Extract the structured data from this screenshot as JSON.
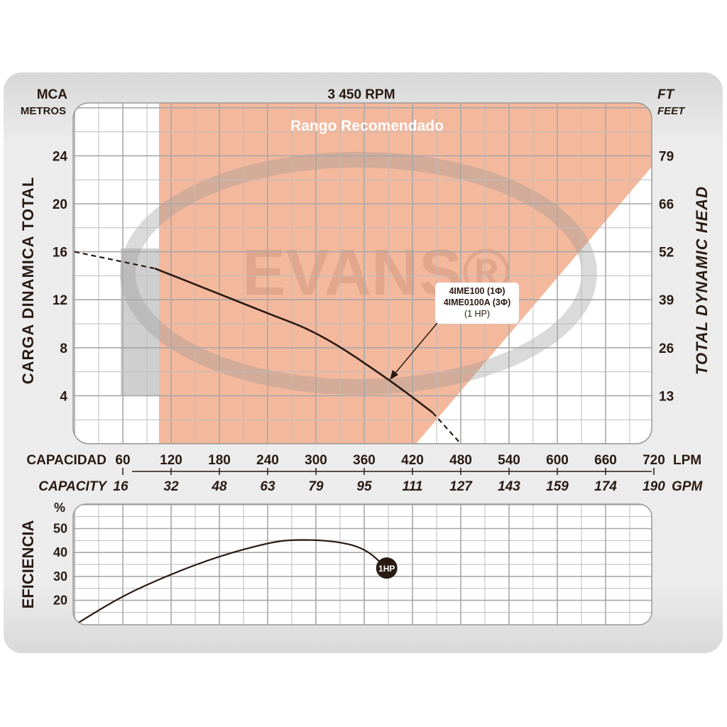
{
  "chart_data": [
    {
      "type": "line",
      "title": "3 450 RPM",
      "watermark": "EVANS®",
      "region_label": "Rango Recomendado",
      "ylabel_left": "CARGA DINAMICA TOTAL",
      "ylabel_right": "TOTAL DYNAMIC HEAD",
      "left_unit": "MCA",
      "left_unit_sub": "METROS",
      "right_unit": "FT",
      "right_unit_sub": "FEET",
      "xlabel_es": "CAPACIDAD",
      "xlabel_en": "CAPACITY",
      "x_unit": "LPM",
      "x_unit_alt": "GPM",
      "xlim": [
        0,
        720
      ],
      "ylim": [
        0,
        28.4
      ],
      "x_ticks": [
        60,
        120,
        180,
        240,
        300,
        360,
        420,
        480,
        540,
        600,
        660,
        720
      ],
      "x_ticks_gpm": [
        "16",
        "32",
        "48",
        "63",
        "79",
        "95",
        "111",
        "127",
        "143",
        "159",
        "174",
        "190"
      ],
      "y_ticks": [
        4,
        8,
        12,
        16,
        20,
        24
      ],
      "y_ticks_ft": [
        "13",
        "26",
        "39",
        "52",
        "66",
        "79"
      ],
      "recommended_range_lpm": [
        105,
        420
      ],
      "series": [
        {
          "name": "4IME100 (1Φ) / 4IME0100A (3Φ) (1 HP)",
          "label_lines": [
            "4IME100 (1Φ)",
            "4IME0100A (3Φ)",
            "(1 HP)"
          ],
          "x": [
            0,
            50,
            100,
            172,
            235,
            305,
            392,
            445,
            480
          ],
          "y": [
            16,
            15.3,
            14.6,
            12.7,
            11.0,
            9.2,
            5.3,
            2.6,
            0
          ],
          "dashed_below_lpm": 100,
          "dashed_above_lpm": 445
        }
      ]
    },
    {
      "type": "line",
      "ylabel": "EFICIENCIA",
      "y_unit": "%",
      "xlim": [
        0,
        720
      ],
      "ylim": [
        10,
        60
      ],
      "y_ticks": [
        20,
        30,
        40,
        50
      ],
      "series": [
        {
          "name": "1HP",
          "x": [
            5,
            60,
            120,
            180,
            240,
            270,
            320,
            360,
            388
          ],
          "y": [
            10.7,
            22,
            31,
            38.5,
            44,
            45.4,
            45,
            42,
            33.5
          ]
        }
      ]
    }
  ]
}
